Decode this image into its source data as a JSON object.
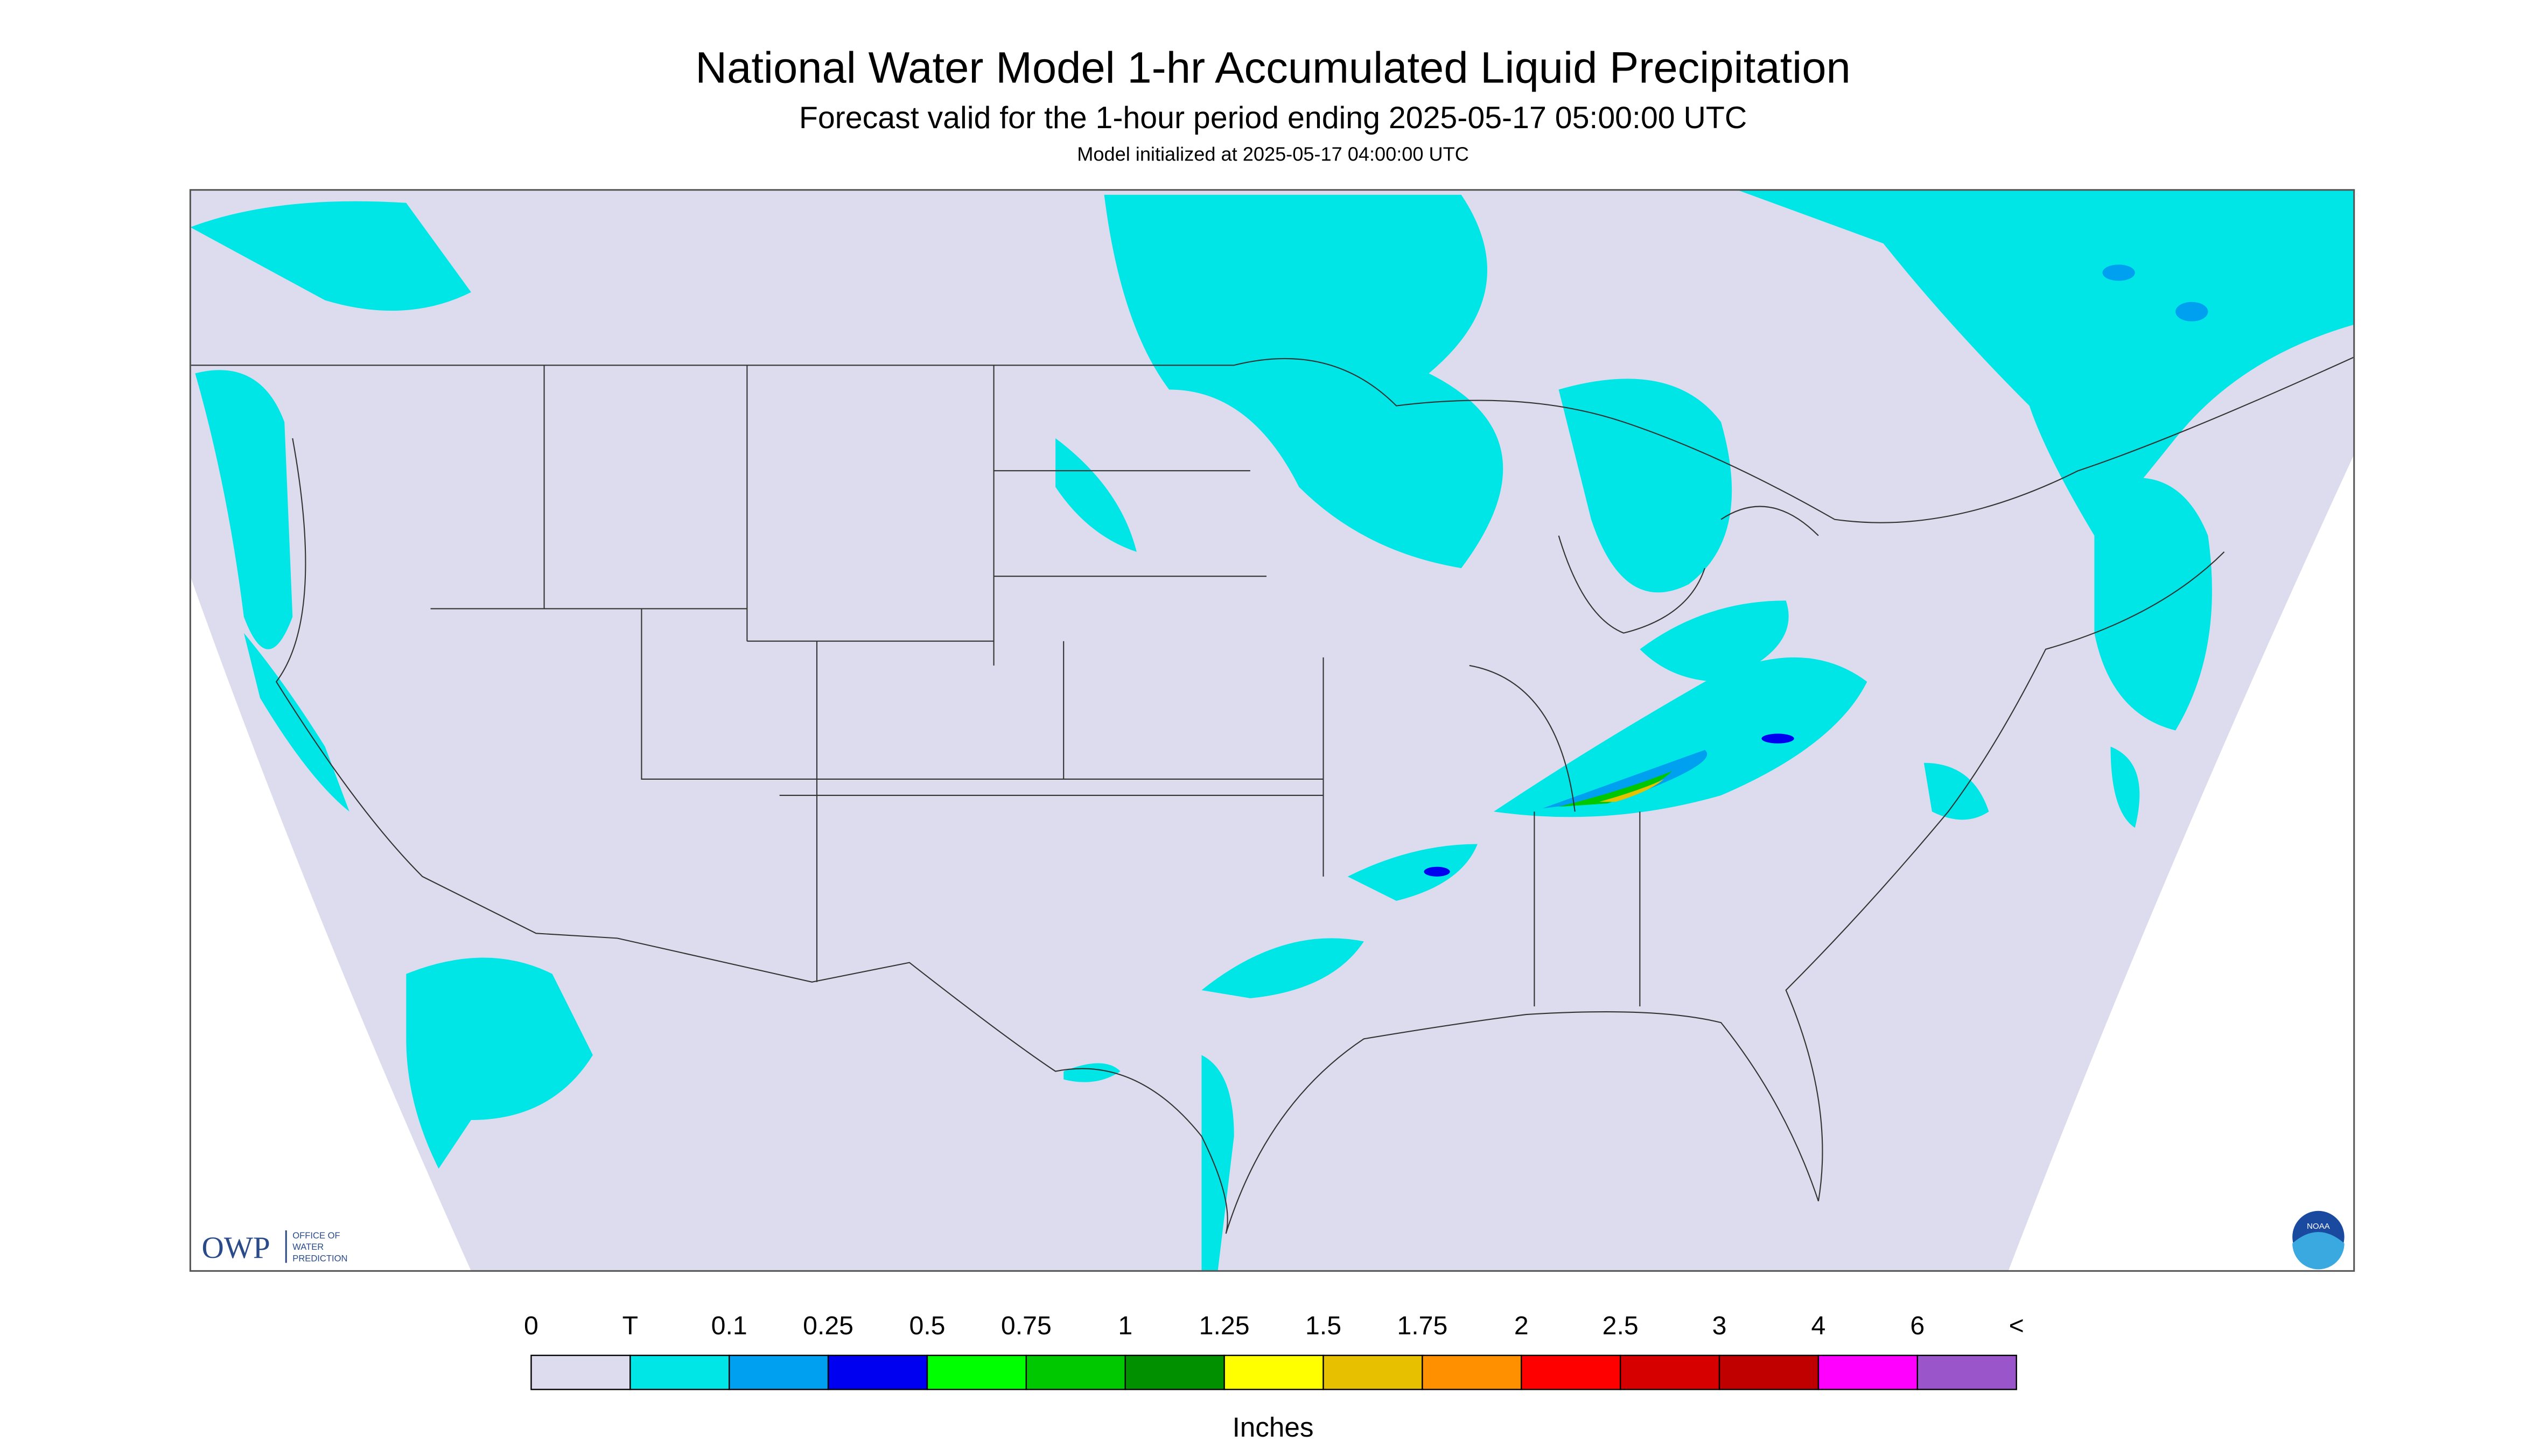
{
  "header": {
    "title": "National Water Model 1-hr Accumulated Liquid Precipitation",
    "subtitle": "Forecast valid for the 1-hour period ending 2025-05-17 05:00:00 UTC",
    "note": "Model initialized at 2025-05-17 04:00:00 UTC"
  },
  "logo": {
    "short": "OWP",
    "long": [
      "OFFICE OF",
      "WATER",
      "PREDICTION"
    ],
    "noaa": "NOAA"
  },
  "legend": {
    "labels": [
      "0",
      "T",
      "0.1",
      "0.25",
      "0.5",
      "0.75",
      "1",
      "1.25",
      "1.5",
      "1.75",
      "2",
      "2.5",
      "3",
      "4",
      "6",
      "<"
    ],
    "colors": [
      "#dcdcee",
      "#00e6e6",
      "#00a0f0",
      "#0000f0",
      "#00ff00",
      "#00c800",
      "#009000",
      "#ffff00",
      "#e7c000",
      "#ff9000",
      "#ff0000",
      "#d60000",
      "#c00000",
      "#ff00ff",
      "#9955c9"
    ],
    "unit": "Inches"
  }
}
